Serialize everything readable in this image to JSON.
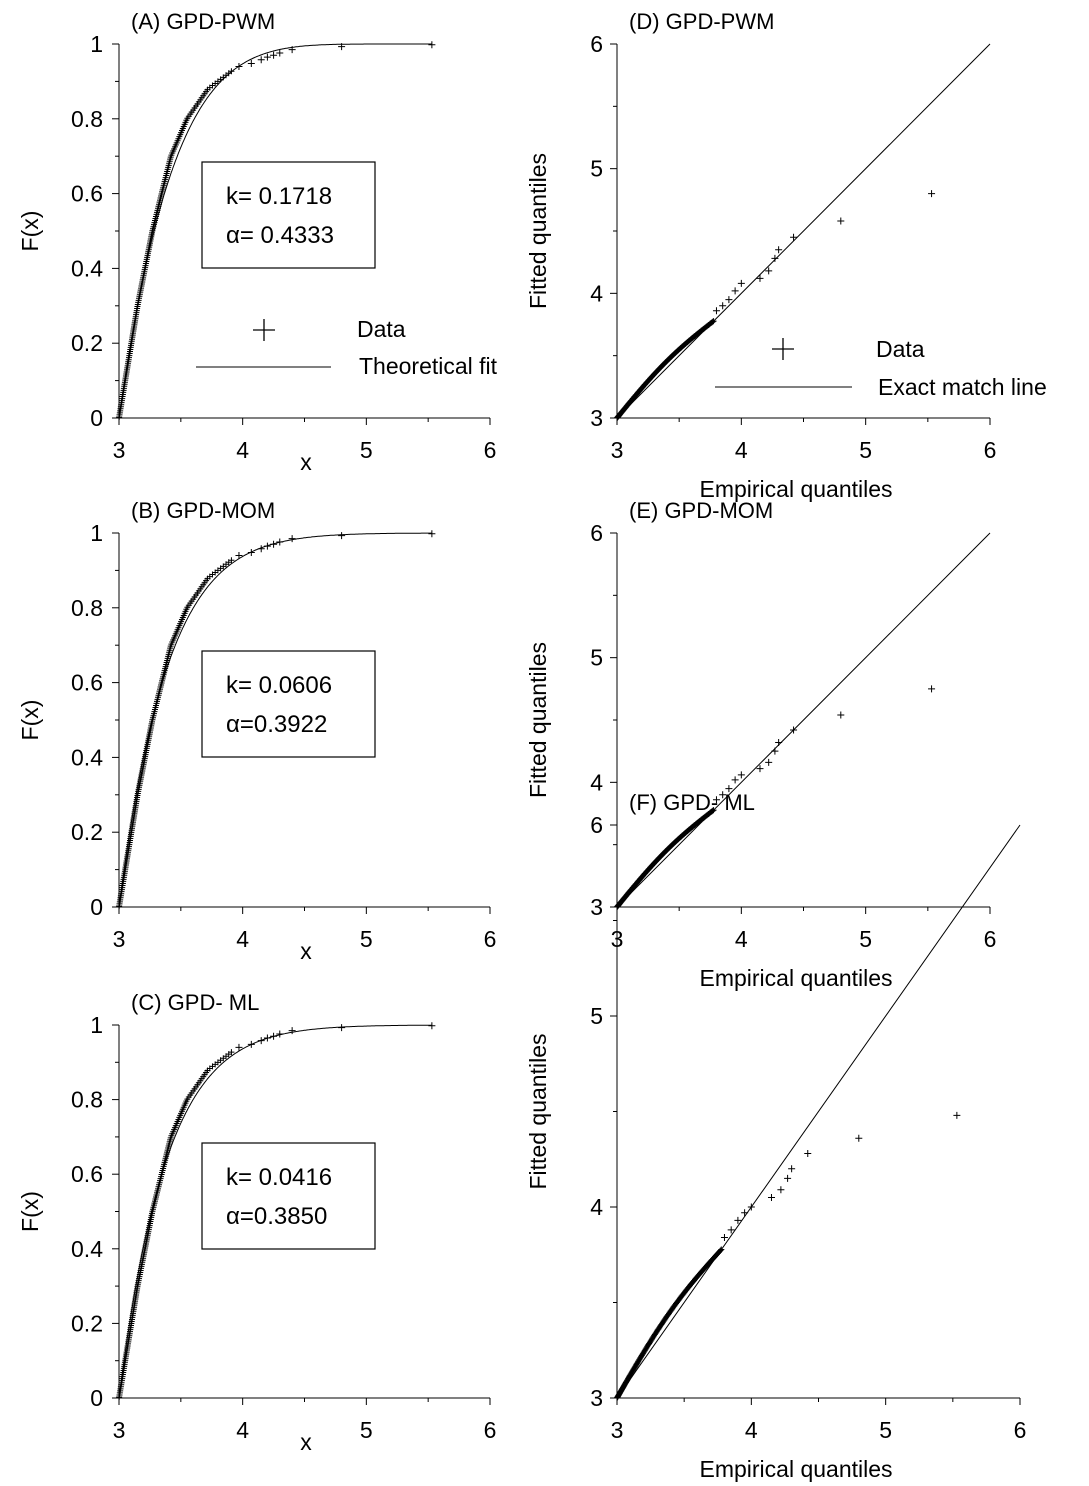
{
  "chart_data": [
    {
      "id": "A",
      "type": "line",
      "title": "(A) GPD-PWM",
      "xlabel": "x",
      "ylabel": "F(x)",
      "xlim": [
        3,
        6
      ],
      "ylim": [
        0,
        1
      ],
      "x_ticks": [
        "3",
        "4",
        "5",
        "6"
      ],
      "y_ticks": [
        "0",
        "0.2",
        "0.4",
        "0.6",
        "0.8",
        "1"
      ],
      "params": {
        "k": 0.1718,
        "alpha": 0.4333
      },
      "param_text": [
        "k= 0.1718",
        "α= 0.4333"
      ],
      "legend": {
        "placement": "center-right",
        "entries": [
          "Data",
          "Theoretical fit"
        ]
      },
      "series": [
        {
          "name": "Data",
          "kind": "scatter"
        },
        {
          "name": "Theoretical fit",
          "kind": "line"
        }
      ],
      "outlier_points": [
        [
          3.97,
          0.94
        ],
        [
          4.07,
          0.948
        ],
        [
          4.15,
          0.958
        ],
        [
          4.2,
          0.965
        ],
        [
          4.25,
          0.97
        ],
        [
          4.3,
          0.976
        ],
        [
          4.4,
          0.985
        ],
        [
          4.8,
          0.993
        ],
        [
          5.53,
          0.998
        ]
      ]
    },
    {
      "id": "B",
      "type": "line",
      "title": "(B) GPD-MOM",
      "xlabel": "x",
      "ylabel": "F(x)",
      "xlim": [
        3,
        6
      ],
      "ylim": [
        0,
        1
      ],
      "x_ticks": [
        "3",
        "4",
        "5",
        "6"
      ],
      "y_ticks": [
        "0",
        "0.2",
        "0.4",
        "0.6",
        "0.8",
        "1"
      ],
      "params": {
        "k": 0.0606,
        "alpha": 0.3922
      },
      "param_text": [
        "k= 0.0606",
        "α=0.3922"
      ],
      "series": [
        {
          "name": "Data",
          "kind": "scatter"
        },
        {
          "name": "Theoretical fit",
          "kind": "line"
        }
      ],
      "outlier_points": [
        [
          3.97,
          0.94
        ],
        [
          4.07,
          0.948
        ],
        [
          4.15,
          0.958
        ],
        [
          4.2,
          0.965
        ],
        [
          4.25,
          0.97
        ],
        [
          4.3,
          0.976
        ],
        [
          4.4,
          0.985
        ],
        [
          4.8,
          0.993
        ],
        [
          5.53,
          0.998
        ]
      ]
    },
    {
      "id": "C",
      "type": "line",
      "title": "(C) GPD- ML",
      "xlabel": "x",
      "ylabel": "F(x)",
      "xlim": [
        3,
        6
      ],
      "ylim": [
        0,
        1
      ],
      "x_ticks": [
        "3",
        "4",
        "5",
        "6"
      ],
      "y_ticks": [
        "0",
        "0.2",
        "0.4",
        "0.6",
        "0.8",
        "1"
      ],
      "params": {
        "k": 0.0416,
        "alpha": 0.385
      },
      "param_text": [
        "k= 0.0416",
        "α=0.3850"
      ],
      "series": [
        {
          "name": "Data",
          "kind": "scatter"
        },
        {
          "name": "Theoretical fit",
          "kind": "line"
        }
      ],
      "outlier_points": [
        [
          3.97,
          0.94
        ],
        [
          4.07,
          0.948
        ],
        [
          4.15,
          0.958
        ],
        [
          4.2,
          0.965
        ],
        [
          4.25,
          0.97
        ],
        [
          4.3,
          0.976
        ],
        [
          4.4,
          0.985
        ],
        [
          4.8,
          0.993
        ],
        [
          5.53,
          0.998
        ]
      ]
    },
    {
      "id": "D",
      "type": "scatter",
      "title": "(D) GPD-PWM",
      "xlabel": "Empirical quantiles",
      "ylabel": "Fitted quantiles",
      "xlim": [
        3,
        6
      ],
      "ylim": [
        3,
        6
      ],
      "x_ticks": [
        "3",
        "4",
        "5",
        "6"
      ],
      "y_ticks": [
        "3",
        "4",
        "5",
        "6"
      ],
      "legend": {
        "placement": "center-right",
        "entries": [
          "Data",
          "Exact match line"
        ]
      },
      "series": [
        {
          "name": "Data",
          "kind": "scatter"
        },
        {
          "name": "Exact match line",
          "kind": "line"
        }
      ],
      "upper_points": [
        [
          3.8,
          3.86
        ],
        [
          3.85,
          3.9
        ],
        [
          3.9,
          3.95
        ],
        [
          3.95,
          4.02
        ],
        [
          4.0,
          4.08
        ],
        [
          4.15,
          4.12
        ],
        [
          4.22,
          4.18
        ],
        [
          4.27,
          4.28
        ],
        [
          4.3,
          4.35
        ],
        [
          4.42,
          4.45
        ],
        [
          4.8,
          4.58
        ],
        [
          5.53,
          4.8
        ]
      ]
    },
    {
      "id": "E",
      "type": "scatter",
      "title": "(E) GPD-MOM",
      "xlabel": "Empirical quantiles",
      "ylabel": "Fitted quantiles",
      "xlim": [
        3,
        6
      ],
      "ylim": [
        3,
        6
      ],
      "x_ticks": [
        "3",
        "4",
        "5",
        "6"
      ],
      "y_ticks": [
        "3",
        "4",
        "5",
        "6"
      ],
      "series": [
        {
          "name": "Data",
          "kind": "scatter"
        },
        {
          "name": "Exact match line",
          "kind": "line"
        }
      ],
      "upper_points": [
        [
          3.8,
          3.86
        ],
        [
          3.85,
          3.9
        ],
        [
          3.9,
          3.95
        ],
        [
          3.95,
          4.02
        ],
        [
          4.0,
          4.06
        ],
        [
          4.15,
          4.11
        ],
        [
          4.22,
          4.16
        ],
        [
          4.27,
          4.25
        ],
        [
          4.3,
          4.32
        ],
        [
          4.42,
          4.42
        ],
        [
          4.8,
          4.54
        ],
        [
          5.53,
          4.75
        ]
      ]
    },
    {
      "id": "F",
      "type": "scatter",
      "title": "(F) GPD- ML",
      "xlabel": "Empirical quantiles",
      "ylabel": "Fitted quantiles",
      "xlim": [
        3,
        6
      ],
      "ylim": [
        3,
        6
      ],
      "x_ticks": [
        "3",
        "4",
        "5",
        "6"
      ],
      "y_ticks": [
        "3",
        "4",
        "5",
        "6"
      ],
      "series": [
        {
          "name": "Data",
          "kind": "scatter"
        },
        {
          "name": "Exact match line",
          "kind": "line"
        }
      ],
      "upper_points": [
        [
          3.8,
          3.84
        ],
        [
          3.85,
          3.88
        ],
        [
          3.9,
          3.93
        ],
        [
          3.95,
          3.97
        ],
        [
          4.0,
          4.0
        ],
        [
          4.15,
          4.05
        ],
        [
          4.22,
          4.09
        ],
        [
          4.27,
          4.15
        ],
        [
          4.3,
          4.2
        ],
        [
          4.42,
          4.28
        ],
        [
          4.8,
          4.36
        ],
        [
          5.53,
          4.48
        ]
      ]
    }
  ]
}
